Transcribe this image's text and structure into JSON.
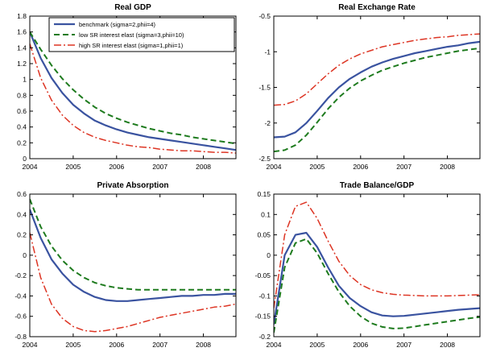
{
  "figure": {
    "background": "#ffffff",
    "axis_color": "#000000"
  },
  "legend": {
    "entries": [
      "benchmark (sigma=2,phii=4)",
      "low SR interest elast (sigma=3,phii=10)",
      "high SR interest elast (sigma=1,phii=1)"
    ]
  },
  "chart_data": [
    {
      "type": "line",
      "title": "Real GDP",
      "xlim": [
        2004,
        2008.75
      ],
      "ylim": [
        0,
        1.8
      ],
      "xticks": [
        2004,
        2005,
        2006,
        2007,
        2008
      ],
      "yticks": [
        0,
        0.2,
        0.4,
        0.6,
        0.8,
        1,
        1.2,
        1.4,
        1.6,
        1.8
      ],
      "x": [
        2004,
        2004.25,
        2004.5,
        2004.75,
        2005,
        2005.25,
        2005.5,
        2005.75,
        2006,
        2006.25,
        2006.5,
        2006.75,
        2007,
        2007.25,
        2007.5,
        2007.75,
        2008,
        2008.25,
        2008.5,
        2008.75
      ],
      "legend": true,
      "series": [
        {
          "name": "benchmark (sigma=2,phii=4)",
          "color": "#3a53a0",
          "style": "solid",
          "values": [
            1.6,
            1.27,
            1.02,
            0.83,
            0.68,
            0.57,
            0.48,
            0.42,
            0.37,
            0.33,
            0.3,
            0.27,
            0.25,
            0.23,
            0.21,
            0.19,
            0.17,
            0.15,
            0.13,
            0.11
          ]
        },
        {
          "name": "low SR interest elast (sigma=3,phii=10)",
          "color": "#1e7b1e",
          "style": "dashed",
          "values": [
            1.6,
            1.38,
            1.18,
            1.01,
            0.87,
            0.75,
            0.65,
            0.57,
            0.51,
            0.46,
            0.42,
            0.38,
            0.35,
            0.32,
            0.3,
            0.27,
            0.25,
            0.23,
            0.21,
            0.19
          ]
        },
        {
          "name": "high SR interest elast (sigma=1,phii=1)",
          "color": "#dd3524",
          "style": "dashdot",
          "values": [
            1.45,
            1.02,
            0.74,
            0.55,
            0.42,
            0.33,
            0.27,
            0.23,
            0.2,
            0.17,
            0.15,
            0.14,
            0.12,
            0.11,
            0.1,
            0.1,
            0.09,
            0.08,
            0.08,
            0.07
          ]
        }
      ]
    },
    {
      "type": "line",
      "title": "Real Exchange Rate",
      "xlim": [
        2004,
        2008.75
      ],
      "ylim": [
        -2.5,
        -0.5
      ],
      "xticks": [
        2004,
        2005,
        2006,
        2007,
        2008
      ],
      "yticks": [
        -2.5,
        -2,
        -1.5,
        -1,
        -0.5
      ],
      "x": [
        2004,
        2004.25,
        2004.5,
        2004.75,
        2005,
        2005.25,
        2005.5,
        2005.75,
        2006,
        2006.25,
        2006.5,
        2006.75,
        2007,
        2007.25,
        2007.5,
        2007.75,
        2008,
        2008.25,
        2008.5,
        2008.75
      ],
      "legend": false,
      "series": [
        {
          "name": "benchmark (sigma=2,phii=4)",
          "color": "#3a53a0",
          "style": "solid",
          "values": [
            -2.2,
            -2.19,
            -2.13,
            -2.0,
            -1.83,
            -1.65,
            -1.5,
            -1.38,
            -1.29,
            -1.21,
            -1.15,
            -1.1,
            -1.06,
            -1.02,
            -0.99,
            -0.96,
            -0.93,
            -0.91,
            -0.88,
            -0.86
          ]
        },
        {
          "name": "low SR interest elast (sigma=3,phii=10)",
          "color": "#1e7b1e",
          "style": "dashed",
          "values": [
            -2.4,
            -2.38,
            -2.31,
            -2.17,
            -1.99,
            -1.8,
            -1.64,
            -1.51,
            -1.41,
            -1.33,
            -1.26,
            -1.21,
            -1.16,
            -1.12,
            -1.08,
            -1.05,
            -1.02,
            -0.99,
            -0.97,
            -0.95
          ]
        },
        {
          "name": "high SR interest elast (sigma=1,phii=1)",
          "color": "#dd3524",
          "style": "dashdot",
          "values": [
            -1.75,
            -1.74,
            -1.69,
            -1.59,
            -1.45,
            -1.31,
            -1.19,
            -1.1,
            -1.03,
            -0.98,
            -0.93,
            -0.9,
            -0.87,
            -0.84,
            -0.82,
            -0.8,
            -0.79,
            -0.77,
            -0.76,
            -0.75
          ]
        }
      ]
    },
    {
      "type": "line",
      "title": "Private Absorption",
      "xlim": [
        2004,
        2008.75
      ],
      "ylim": [
        -0.8,
        0.6
      ],
      "xticks": [
        2004,
        2005,
        2006,
        2007,
        2008
      ],
      "yticks": [
        -0.8,
        -0.6,
        -0.4,
        -0.2,
        0,
        0.2,
        0.4,
        0.6
      ],
      "x": [
        2004,
        2004.25,
        2004.5,
        2004.75,
        2005,
        2005.25,
        2005.5,
        2005.75,
        2006,
        2006.25,
        2006.5,
        2006.75,
        2007,
        2007.25,
        2007.5,
        2007.75,
        2008,
        2008.25,
        2008.5,
        2008.75
      ],
      "legend": false,
      "series": [
        {
          "name": "benchmark (sigma=2,phii=4)",
          "color": "#3a53a0",
          "style": "solid",
          "values": [
            0.45,
            0.17,
            -0.04,
            -0.18,
            -0.29,
            -0.36,
            -0.41,
            -0.44,
            -0.45,
            -0.45,
            -0.44,
            -0.43,
            -0.42,
            -0.41,
            -0.4,
            -0.4,
            -0.39,
            -0.39,
            -0.38,
            -0.38
          ]
        },
        {
          "name": "low SR interest elast (sigma=3,phii=10)",
          "color": "#1e7b1e",
          "style": "dashed",
          "values": [
            0.55,
            0.28,
            0.09,
            -0.05,
            -0.15,
            -0.22,
            -0.27,
            -0.3,
            -0.32,
            -0.33,
            -0.34,
            -0.34,
            -0.34,
            -0.34,
            -0.34,
            -0.34,
            -0.34,
            -0.34,
            -0.34,
            -0.34
          ]
        },
        {
          "name": "high SR interest elast (sigma=1,phii=1)",
          "color": "#dd3524",
          "style": "dashdot",
          "values": [
            0.22,
            -0.22,
            -0.48,
            -0.62,
            -0.7,
            -0.74,
            -0.75,
            -0.74,
            -0.72,
            -0.7,
            -0.67,
            -0.64,
            -0.61,
            -0.59,
            -0.57,
            -0.55,
            -0.53,
            -0.51,
            -0.5,
            -0.48
          ]
        }
      ]
    },
    {
      "type": "line",
      "title": "Trade Balance/GDP",
      "xlim": [
        2004,
        2008.75
      ],
      "ylim": [
        -0.2,
        0.15
      ],
      "xticks": [
        2004,
        2005,
        2006,
        2007,
        2008
      ],
      "yticks": [
        -0.2,
        -0.15,
        -0.1,
        -0.05,
        0,
        0.05,
        0.1,
        0.15
      ],
      "x": [
        2004,
        2004.25,
        2004.5,
        2004.75,
        2005,
        2005.25,
        2005.5,
        2005.75,
        2006,
        2006.25,
        2006.5,
        2006.75,
        2007,
        2007.25,
        2007.5,
        2007.75,
        2008,
        2008.25,
        2008.5,
        2008.75
      ],
      "legend": false,
      "series": [
        {
          "name": "benchmark (sigma=2,phii=4)",
          "color": "#3a53a0",
          "style": "solid",
          "values": [
            -0.17,
            0.0,
            0.05,
            0.055,
            0.02,
            -0.03,
            -0.075,
            -0.105,
            -0.125,
            -0.14,
            -0.148,
            -0.15,
            -0.149,
            -0.146,
            -0.143,
            -0.14,
            -0.137,
            -0.134,
            -0.132,
            -0.13
          ]
        },
        {
          "name": "low SR interest elast (sigma=3,phii=10)",
          "color": "#1e7b1e",
          "style": "dashed",
          "values": [
            -0.19,
            -0.03,
            0.03,
            0.04,
            0.005,
            -0.045,
            -0.09,
            -0.125,
            -0.15,
            -0.167,
            -0.176,
            -0.18,
            -0.179,
            -0.175,
            -0.171,
            -0.167,
            -0.163,
            -0.159,
            -0.155,
            -0.152
          ]
        },
        {
          "name": "high SR interest elast (sigma=1,phii=1)",
          "color": "#dd3524",
          "style": "dashdot",
          "values": [
            -0.13,
            0.05,
            0.12,
            0.13,
            0.09,
            0.035,
            -0.015,
            -0.05,
            -0.072,
            -0.085,
            -0.092,
            -0.096,
            -0.098,
            -0.099,
            -0.1,
            -0.1,
            -0.1,
            -0.099,
            -0.098,
            -0.097
          ]
        }
      ]
    }
  ]
}
